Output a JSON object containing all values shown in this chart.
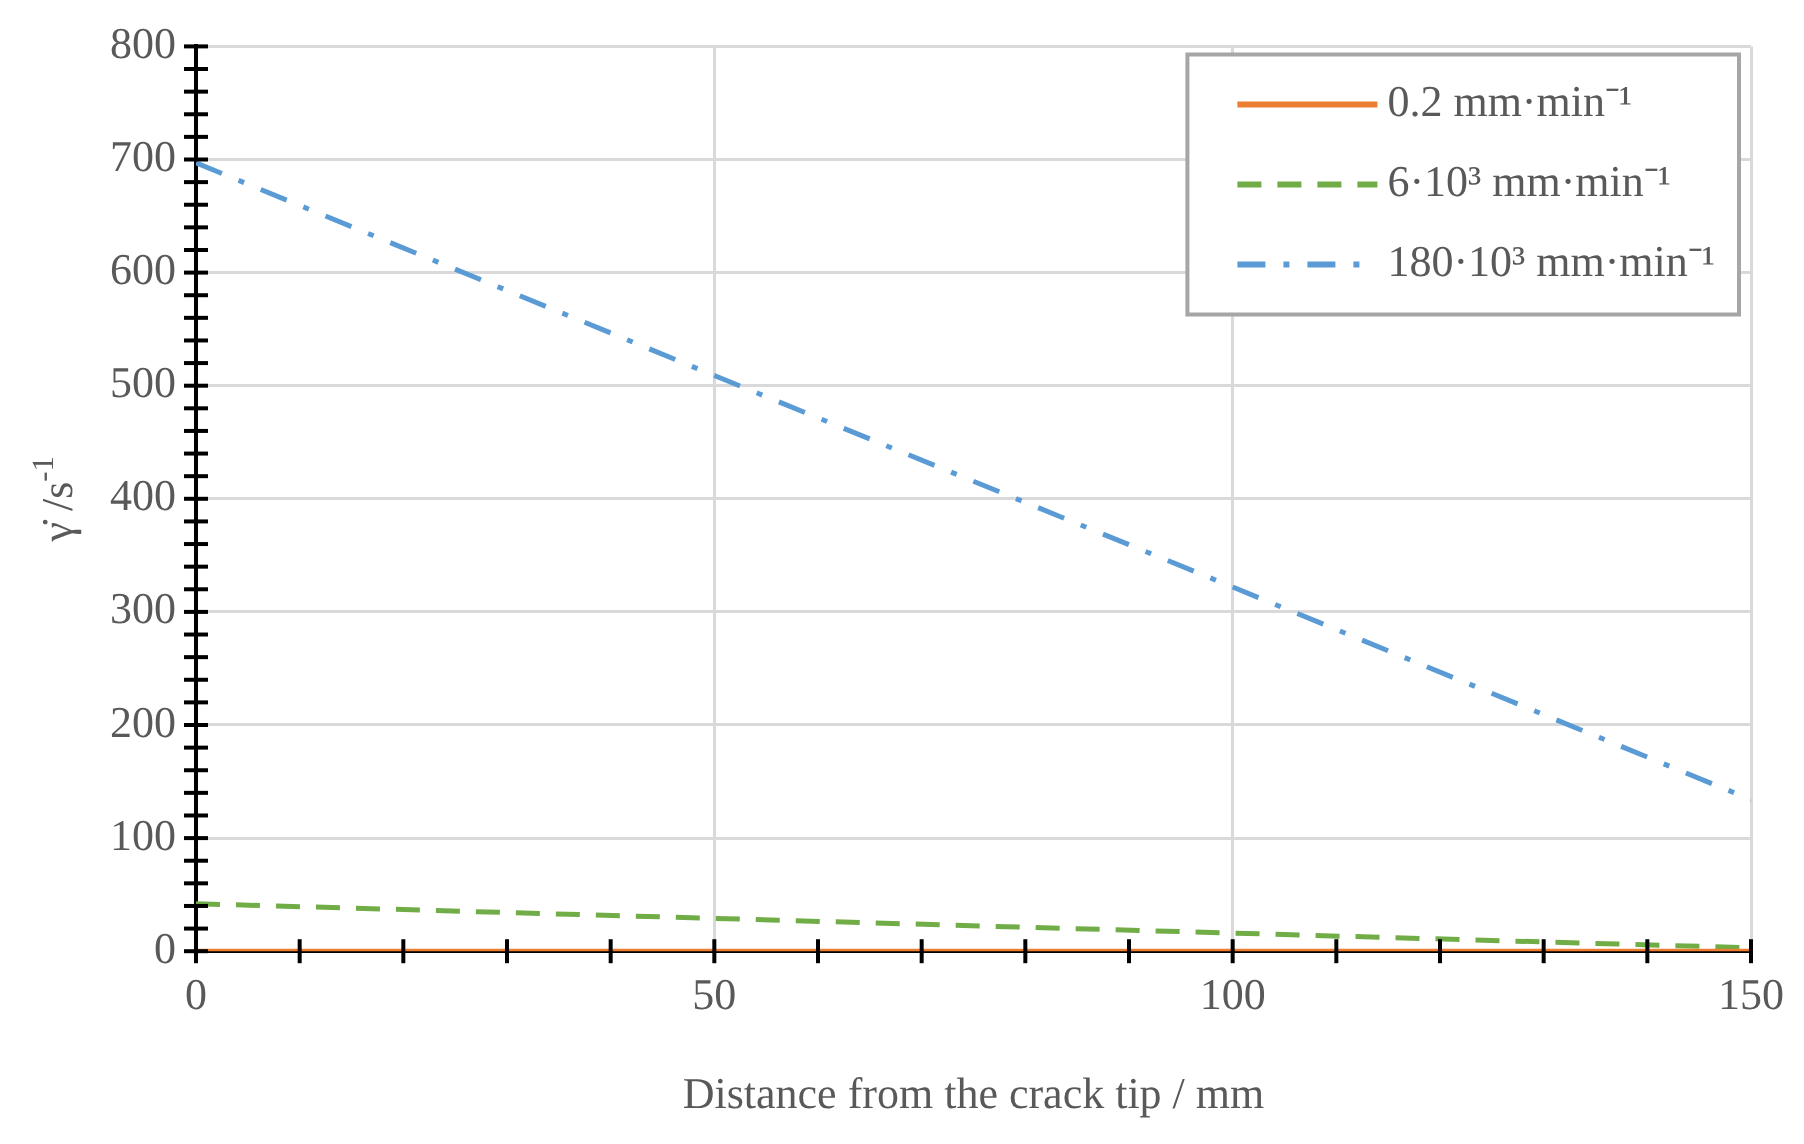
{
  "chart_data": {
    "type": "line",
    "xlabel": "Distance from the crack tip / mm",
    "ylabel": "γ̇ /s$^{-1}$",
    "xlim": [
      0,
      150
    ],
    "xticks": [
      0,
      {
        "value": 10,
        "label": null
      },
      {
        "value": 20,
        "label": null
      },
      {
        "value": 30,
        "label": null
      },
      {
        "value": 40,
        "label": null
      },
      50,
      {
        "value": 60,
        "label": null
      },
      {
        "value": 70,
        "label": null
      },
      {
        "value": 80,
        "label": null
      },
      {
        "value": 90,
        "label": null
      },
      100,
      {
        "value": 110,
        "label": null
      },
      {
        "value": 120,
        "label": null
      },
      {
        "value": 130,
        "label": null
      },
      {
        "value": 140,
        "label": null
      },
      150
    ],
    "ylim": [
      0,
      800
    ],
    "yticks": [
      0,
      {
        "value": 20,
        "label": null
      },
      {
        "value": 40,
        "label": null
      },
      {
        "value": 60,
        "label": null
      },
      {
        "value": 80,
        "label": null
      },
      100,
      {
        "value": 120,
        "label": null
      },
      {
        "value": 140,
        "label": null
      },
      {
        "value": 160,
        "label": null
      },
      {
        "value": 180,
        "label": null
      },
      200,
      {
        "value": 220,
        "label": null
      },
      {
        "value": 240,
        "label": null
      },
      {
        "value": 260,
        "label": null
      },
      {
        "value": 280,
        "label": null
      },
      300,
      {
        "value": 320,
        "label": null
      },
      {
        "value": 340,
        "label": null
      },
      {
        "value": 360,
        "label": null
      },
      {
        "value": 380,
        "label": null
      },
      400,
      {
        "value": 420,
        "label": null
      },
      {
        "value": 440,
        "label": null
      },
      {
        "value": 460,
        "label": null
      },
      {
        "value": 480,
        "label": null
      },
      500,
      {
        "value": 520,
        "label": null
      },
      {
        "value": 540,
        "label": null
      },
      {
        "value": 560,
        "label": null
      },
      {
        "value": 580,
        "label": null
      },
      600,
      {
        "value": 620,
        "label": null
      },
      {
        "value": 640,
        "label": null
      },
      {
        "value": 660,
        "label": null
      },
      {
        "value": 680,
        "label": null
      },
      700,
      {
        "value": 720,
        "label": null
      },
      {
        "value": 740,
        "label": null
      },
      {
        "value": 760,
        "label": null
      },
      {
        "value": 780,
        "label": null
      },
      800
    ],
    "grid": true,
    "legend": "top right",
    "marker": "none",
    "x": [
      0,
      50,
      100,
      150
    ],
    "series": [
      {
        "name": "0.2 mm·min⁻¹",
        "color": "#ed7d31",
        "line_style": "solid",
        "values": [
          0,
          0,
          0,
          0
        ]
      },
      {
        "name": "6·10³ mm·min⁻¹",
        "color": "#70ad47",
        "line_style": "dashed",
        "values": [
          42,
          29,
          16,
          3
        ]
      },
      {
        "name": "180·10³ mm·min⁻¹",
        "color": "#5b9bd5",
        "line_style": "dashdot",
        "values": [
          697,
          509,
          322,
          134
        ]
      }
    ]
  }
}
